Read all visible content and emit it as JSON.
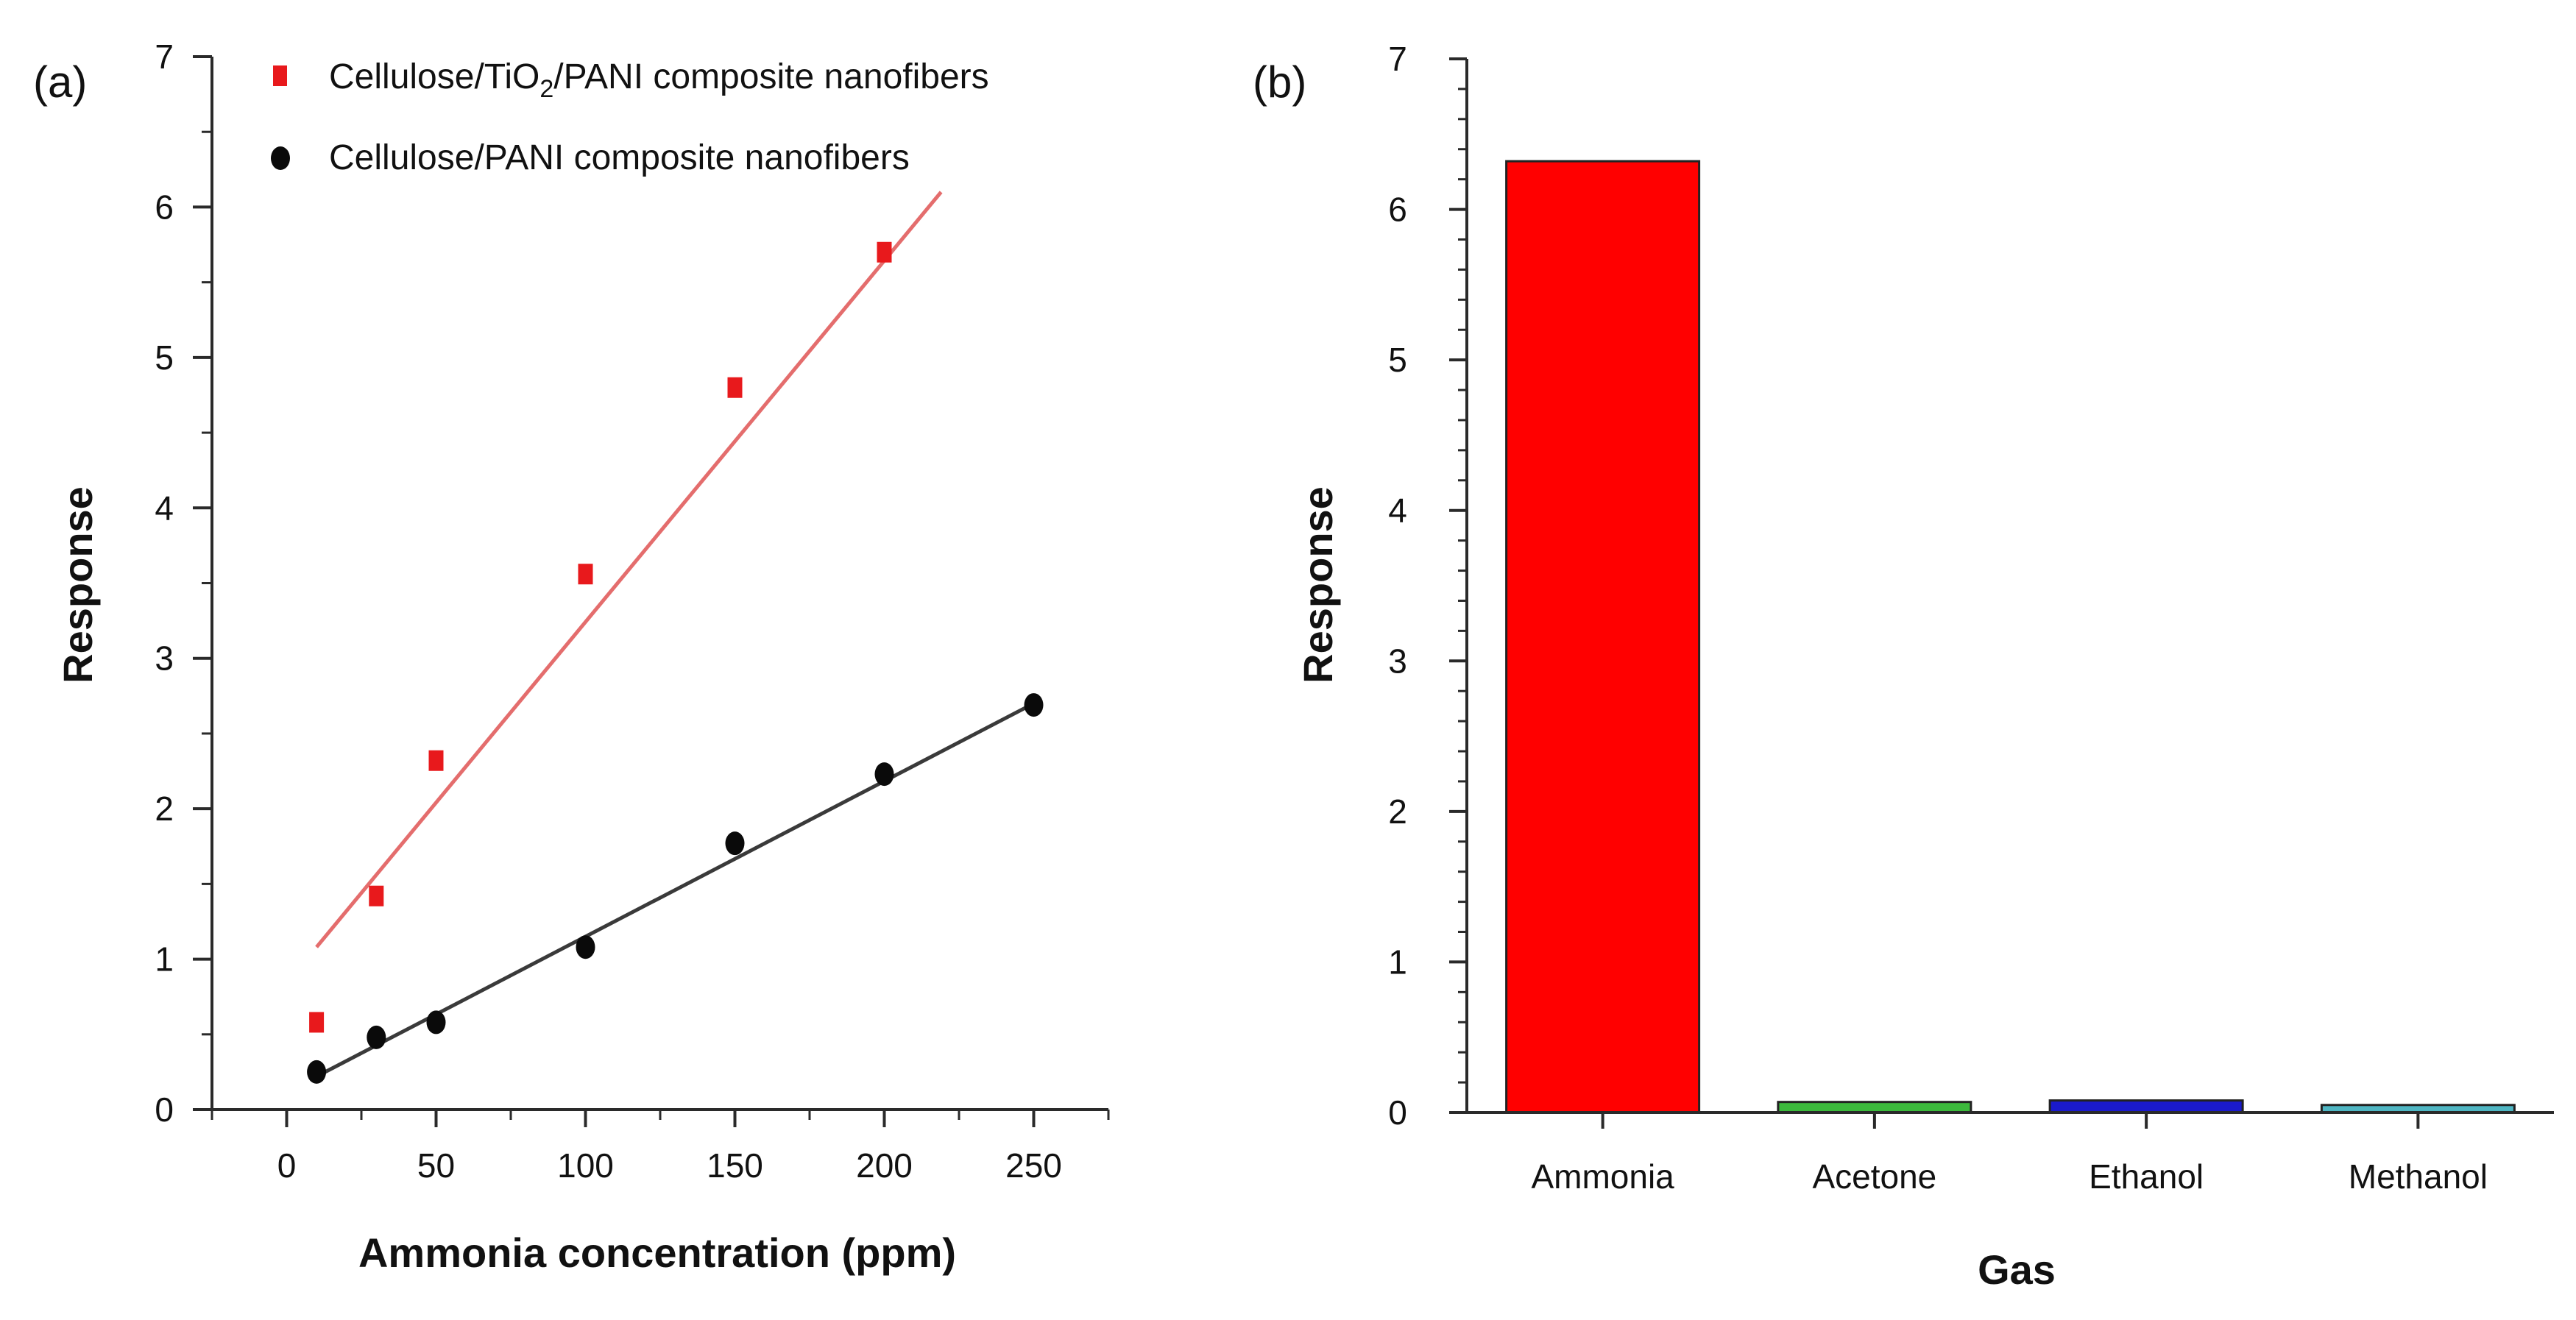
{
  "chart_data": [
    {
      "panel": "(a)",
      "type": "scatter",
      "xlabel": "Ammonia concentration (ppm)",
      "ylabel": "Response",
      "xlim": [
        -25,
        275
      ],
      "ylim": [
        0,
        7
      ],
      "xticks": [
        0,
        50,
        100,
        150,
        200,
        250
      ],
      "yticks": [
        0,
        1,
        2,
        3,
        4,
        5,
        6,
        7
      ],
      "legend_position": "top-left",
      "series": [
        {
          "name": "Cellulose/TiO",
          "name_sub": "2",
          "name_suffix": "/PANI composite nanofibers",
          "color": "#e8191c",
          "marker": "square",
          "x": [
            10,
            30,
            50,
            100,
            150,
            200
          ],
          "y": [
            0.58,
            1.42,
            2.32,
            3.56,
            4.8,
            5.7
          ],
          "fit": {
            "x": [
              10,
              219
            ],
            "y": [
              1.08,
              6.1
            ]
          }
        },
        {
          "name": "Cellulose/PANI composite nanofibers",
          "color": "#0a0a0a",
          "marker": "circle",
          "x": [
            10,
            30,
            50,
            100,
            150,
            200,
            250
          ],
          "y": [
            0.25,
            0.48,
            0.58,
            1.08,
            1.77,
            2.23,
            2.69
          ],
          "fit": {
            "x": [
              10,
              250
            ],
            "y": [
              0.22,
              2.7
            ]
          }
        }
      ]
    },
    {
      "panel": "(b)",
      "type": "bar",
      "xlabel": "Gas",
      "ylabel": "Response",
      "ylim": [
        0,
        7
      ],
      "yticks": [
        0,
        1,
        2,
        3,
        4,
        5,
        6,
        7
      ],
      "categories": [
        "Ammonia",
        "Acetone",
        "Ethanol",
        "Methanol"
      ],
      "values": [
        6.32,
        0.07,
        0.08,
        0.05
      ],
      "colors": [
        "#ff0000",
        "#3cb93c",
        "#1a1acc",
        "#4fb6c3"
      ]
    }
  ]
}
